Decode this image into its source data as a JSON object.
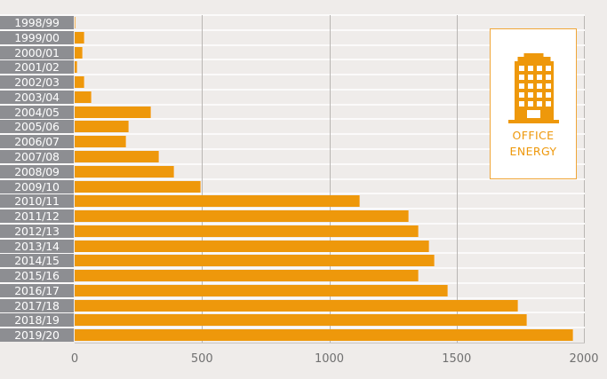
{
  "chart_data": {
    "type": "bar",
    "orientation": "horizontal",
    "title": "",
    "xlabel": "",
    "ylabel": "",
    "categories": [
      "1998/99",
      "1999/00",
      "2000/01",
      "2001/02",
      "2002/03",
      "2003/04",
      "2004/05",
      "2005/06",
      "2006/07",
      "2007/08",
      "2008/09",
      "2009/10",
      "2010/11",
      "2011/12",
      "2012/13",
      "2013/14",
      "2014/15",
      "2015/16",
      "2016/17",
      "2017/18",
      "2018/19",
      "2019/20"
    ],
    "values": [
      5,
      37,
      33,
      10,
      40,
      68,
      299,
      214,
      201,
      333,
      390,
      494,
      1122,
      1311,
      1350,
      1394,
      1412,
      1350,
      1466,
      1743,
      1777,
      1957
    ],
    "xlim": [
      0,
      2000
    ],
    "xticks": [
      "0",
      "500",
      "1000",
      "1500",
      "2000"
    ],
    "grid": true,
    "bar_color": "#ee980b",
    "legend": {
      "position": "top-right",
      "icon": "office-building-icon",
      "lines": [
        "OFFICE",
        "ENERGY"
      ]
    }
  },
  "axis": {
    "ticks": [
      {
        "label": "0",
        "value": 0
      },
      {
        "label": "500",
        "value": 500
      },
      {
        "label": "1000",
        "value": 1000
      },
      {
        "label": "1500",
        "value": 1500
      },
      {
        "label": "2000",
        "value": 2000
      }
    ]
  },
  "legend": {
    "icon": "office-building-icon",
    "line1": "OFFICE",
    "line2": "ENERGY",
    "color": "#ee980b"
  }
}
